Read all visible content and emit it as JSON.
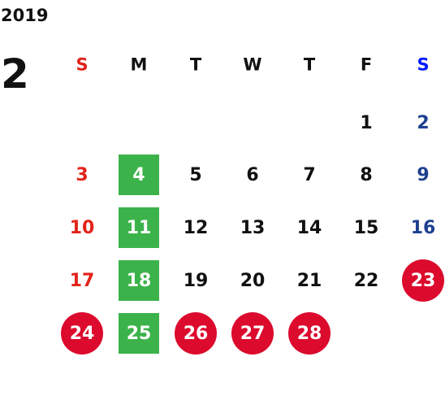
{
  "year": "2019",
  "month": "2",
  "weekdays": [
    "S",
    "M",
    "T",
    "W",
    "T",
    "F",
    "S"
  ],
  "colors": {
    "sunday": "#e2231a",
    "saturday": "#1d3f8f",
    "saturday_header": "#0019ff",
    "weekday": "#111111",
    "box": "#3cb34a",
    "circle": "#dc0a2d",
    "marked_text": "#ffffff"
  },
  "weeks": [
    [
      null,
      null,
      null,
      null,
      null,
      {
        "day": 1
      },
      {
        "day": 2
      }
    ],
    [
      {
        "day": 3
      },
      {
        "day": 4,
        "mark": "box"
      },
      {
        "day": 5
      },
      {
        "day": 6
      },
      {
        "day": 7
      },
      {
        "day": 8
      },
      {
        "day": 9
      }
    ],
    [
      {
        "day": 10
      },
      {
        "day": 11,
        "mark": "box"
      },
      {
        "day": 12
      },
      {
        "day": 13
      },
      {
        "day": 14
      },
      {
        "day": 15
      },
      {
        "day": 16
      }
    ],
    [
      {
        "day": 17
      },
      {
        "day": 18,
        "mark": "box"
      },
      {
        "day": 19
      },
      {
        "day": 20
      },
      {
        "day": 21
      },
      {
        "day": 22
      },
      {
        "day": 23,
        "mark": "circle"
      }
    ],
    [
      {
        "day": 24,
        "mark": "circle"
      },
      {
        "day": 25,
        "mark": "box"
      },
      {
        "day": 26,
        "mark": "circle"
      },
      {
        "day": 27,
        "mark": "circle"
      },
      {
        "day": 28,
        "mark": "circle"
      },
      null,
      null
    ]
  ]
}
